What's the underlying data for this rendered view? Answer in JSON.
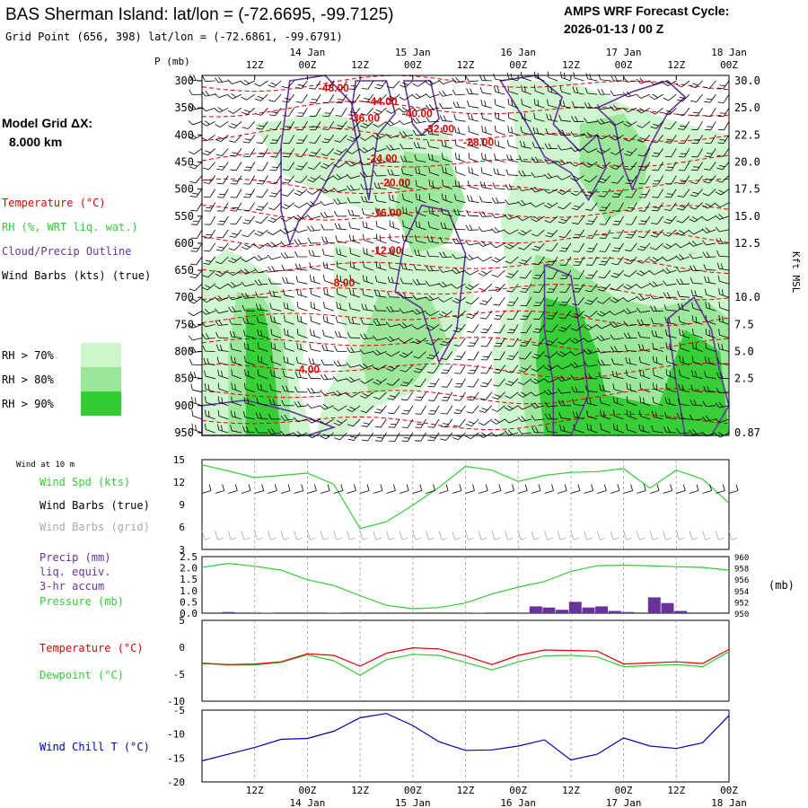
{
  "header": {
    "title": "BAS Sherman Island:  lat/lon = (-72.6695, -99.7125)",
    "subtitle": "Grid Point (656, 398) lat/lon = (-72.6861, -99.6791)",
    "forecast_line1": "AMPS WRF Forecast Cycle:",
    "forecast_line2": "2026-01-13 / 00  Z"
  },
  "legend": {
    "model_grid_line1": "Model Grid ΔX:",
    "model_grid_line2": "8.000 km",
    "temperature": "Temperature (°C)",
    "rh": "RH (%, WRT liq. wat.)",
    "cloud": "Cloud/Precip Outline",
    "wind": "Wind Barbs (kts) (true)",
    "rh70": "RH > 70%",
    "rh80": "RH > 80%",
    "rh90": "RH > 90%",
    "colors": {
      "rh70": "#ccf7cc",
      "rh80": "#99e699",
      "rh90": "#33cc33",
      "temperature": "#e00000",
      "cloud": "#663399"
    }
  },
  "time_axis": {
    "top_hours": [
      "12Z",
      "00Z",
      "12Z",
      "00Z",
      "12Z",
      "00Z",
      "12Z",
      "00Z",
      "12Z",
      "00Z"
    ],
    "top_dates": [
      "14 Jan",
      "15 Jan",
      "16 Jan",
      "17 Jan",
      "18 Jan"
    ],
    "bottom_hours": [
      "12Z",
      "00Z",
      "12Z",
      "00Z",
      "12Z",
      "00Z",
      "12Z",
      "00Z",
      "12Z",
      "00Z"
    ],
    "bottom_dates": [
      "14 Jan",
      "15 Jan",
      "16 Jan",
      "17 Jan",
      "18 Jan"
    ]
  },
  "chart_data": [
    {
      "type": "heatmap",
      "title": "Vertical cross-section (time-height)",
      "y_left_label": "P (mb)",
      "y_left_ticks": [
        "300",
        "350",
        "400",
        "450",
        "500",
        "550",
        "600",
        "650",
        "700",
        "750",
        "800",
        "850",
        "900",
        "950"
      ],
      "y_right_label": "Kft MSL",
      "y_right_ticks": [
        {
          "label": "30.0",
          "p": 300
        },
        {
          "label": "25.0",
          "p": 350
        },
        {
          "label": "22.5",
          "p": 400
        },
        {
          "label": "20.0",
          "p": 450
        },
        {
          "label": "17.5",
          "p": 500
        },
        {
          "label": "15.0",
          "p": 550
        },
        {
          "label": "12.5",
          "p": 600
        },
        {
          "label": "10.0",
          "p": 700
        },
        {
          "label": "7.5",
          "p": 750
        },
        {
          "label": "5.0",
          "p": 800
        },
        {
          "label": "2.5",
          "p": 850
        },
        {
          "label": "0.87",
          "p": 950
        }
      ],
      "temperature_labels": [
        {
          "text": "-48.00",
          "hour": 30,
          "p": 320
        },
        {
          "text": "-44.00",
          "hour": 41,
          "p": 345
        },
        {
          "text": "-40.00",
          "hour": 49,
          "p": 367
        },
        {
          "text": "-36.00",
          "hour": 37,
          "p": 375
        },
        {
          "text": "-32.00",
          "hour": 54,
          "p": 395
        },
        {
          "text": "-28.00",
          "hour": 63,
          "p": 420
        },
        {
          "text": "-24.00",
          "hour": 41,
          "p": 450
        },
        {
          "text": "-20.00",
          "hour": 44,
          "p": 495
        },
        {
          "text": "-16.00",
          "hour": 42,
          "p": 550
        },
        {
          "text": "-12.00",
          "hour": 42,
          "p": 620
        },
        {
          "text": "-8.00",
          "hour": 32,
          "p": 680
        },
        {
          "text": "-4.00",
          "hour": 24,
          "p": 840
        }
      ]
    },
    {
      "type": "line",
      "title": "Wind at 10 m",
      "series": [
        {
          "name": "Wind Spd (kts)",
          "color": "#33cc33"
        }
      ],
      "labels": [
        "Wind Spd (kts)",
        "Wind Barbs (true)",
        "Wind Barbs (grid)"
      ],
      "y_ticks": [
        "15",
        "12",
        "9",
        "6",
        "3"
      ],
      "ylim": [
        3,
        15
      ],
      "x_hours": [
        0,
        6,
        12,
        18,
        24,
        30,
        36,
        42,
        48,
        54,
        60,
        66,
        72,
        78,
        84,
        90,
        96,
        102,
        108,
        114,
        120
      ],
      "wind_speed": [
        14.3,
        13.5,
        12.6,
        12.9,
        13.2,
        11.7,
        5.8,
        6.7,
        8.9,
        11.3,
        14.1,
        13.6,
        12.1,
        12.9,
        13.3,
        13.4,
        13.8,
        11.2,
        13.6,
        12.4,
        9.2
      ]
    },
    {
      "type": "line",
      "title": "Precip / Pressure",
      "labels": [
        "Precip (mm)",
        "liq. equiv.",
        "3-hr accum",
        "Pressure (mb)"
      ],
      "y_left_ticks": [
        "2.5",
        "2.0",
        "1.5",
        "1.0",
        "0.5",
        "0.0"
      ],
      "y_right_ticks": [
        "960",
        "958",
        "956",
        "954",
        "952",
        "950"
      ],
      "right_unit": "(mb)",
      "x_hours": [
        0,
        6,
        12,
        18,
        24,
        30,
        36,
        42,
        48,
        54,
        60,
        66,
        72,
        78,
        84,
        90,
        96,
        102,
        108,
        114,
        120
      ],
      "pressure": [
        958.1,
        958.8,
        958.3,
        957.6,
        955.9,
        954.9,
        953.1,
        951.4,
        950.8,
        951.0,
        951.8,
        953.4,
        954.6,
        955.6,
        957.4,
        958.4,
        958.5,
        958.4,
        958.2,
        958.1,
        957.6
      ],
      "precip_hours": [
        6,
        15,
        30,
        63,
        76,
        79,
        82,
        85,
        88,
        91,
        94,
        97,
        103,
        106,
        109
      ],
      "precip": [
        0.05,
        0.02,
        0.02,
        0.02,
        0.3,
        0.25,
        0.15,
        0.5,
        0.25,
        0.3,
        0.1,
        0.05,
        0.7,
        0.45,
        0.1
      ]
    },
    {
      "type": "line",
      "title": "Temperature / Dewpoint",
      "series": [
        {
          "name": "Temperature (°C)",
          "color": "#e00000"
        },
        {
          "name": "Dewpoint (°C)",
          "color": "#33cc33"
        }
      ],
      "y_ticks": [
        "5",
        "0",
        "-5",
        "-10"
      ],
      "ylim": [
        -10,
        5
      ],
      "x_hours": [
        0,
        6,
        12,
        18,
        24,
        30,
        36,
        42,
        48,
        54,
        60,
        66,
        72,
        78,
        84,
        90,
        96,
        102,
        108,
        114,
        120
      ],
      "temperature": [
        -3,
        -3.2,
        -3.1,
        -2.7,
        -1.2,
        -1.5,
        -3.5,
        -1.1,
        -0.1,
        -0.3,
        -1.6,
        -3.2,
        -1.5,
        -0.5,
        -0.6,
        -0.7,
        -3.1,
        -2.9,
        -2.7,
        -3,
        -0.4
      ],
      "dewpoint": [
        -2.9,
        -3.3,
        -3.3,
        -2.8,
        -1.4,
        -2.5,
        -5.2,
        -2.3,
        -1.3,
        -1.5,
        -2.8,
        -4.2,
        -2.7,
        -1.6,
        -1.5,
        -1.8,
        -3.6,
        -3.4,
        -3.2,
        -3.6,
        -0.8
      ]
    },
    {
      "type": "line",
      "title": "Wind Chill",
      "series": [
        {
          "name": "Wind Chill T (°C)",
          "color": "#0000b3"
        }
      ],
      "y_ticks": [
        "-5",
        "-10",
        "-15",
        "-20"
      ],
      "ylim": [
        -20,
        -5
      ],
      "x_hours": [
        0,
        6,
        12,
        18,
        24,
        30,
        36,
        42,
        48,
        54,
        60,
        66,
        72,
        78,
        84,
        90,
        96,
        102,
        108,
        114,
        120
      ],
      "wind_chill": [
        -15.6,
        -14.2,
        -12.8,
        -11.1,
        -10.9,
        -9.4,
        -6.6,
        -5.7,
        -8.2,
        -11.6,
        -13.4,
        -13.3,
        -12.5,
        -11.2,
        -15.4,
        -14.2,
        -10.8,
        -12.5,
        -13.0,
        -11.8,
        -6.1
      ]
    }
  ]
}
